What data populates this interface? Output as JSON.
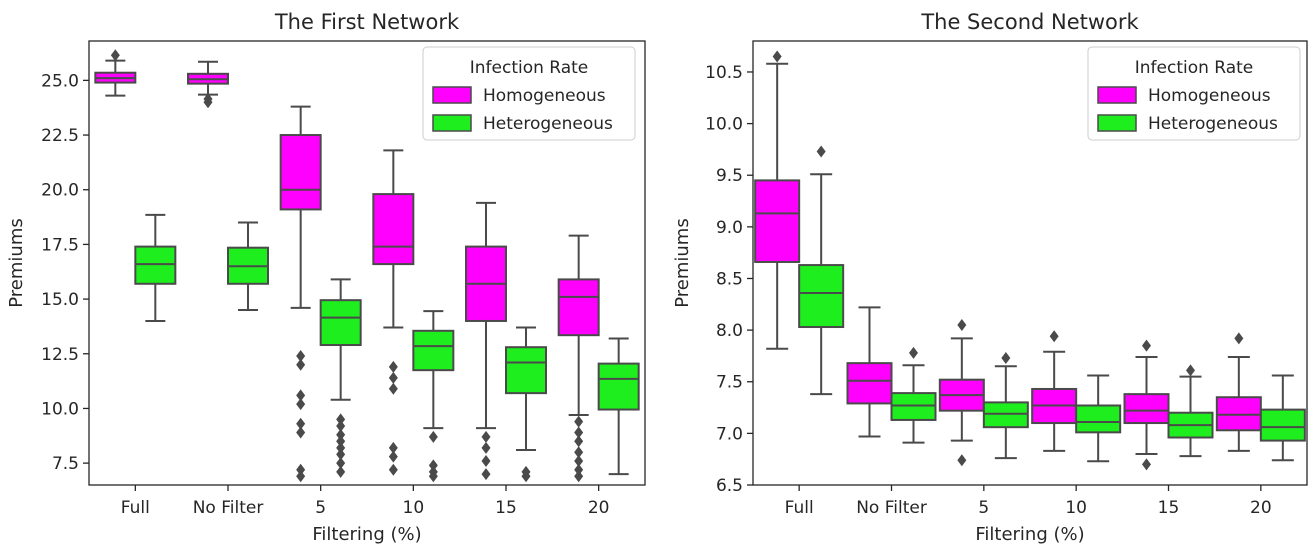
{
  "chart_data": [
    {
      "type": "box",
      "title": "The First Network",
      "xlabel": "Filtering (%)",
      "ylabel": "Premiums",
      "categories": [
        "Full",
        "No Filter",
        "5",
        "10",
        "15",
        "20"
      ],
      "ylim": [
        6.5,
        26.8
      ],
      "yticks": [
        "7.5",
        "10.0",
        "12.5",
        "15.0",
        "17.5",
        "20.0",
        "22.5",
        "25.0"
      ],
      "legend": {
        "title": "Infection Rate",
        "position": "top-right"
      },
      "series": [
        {
          "name": "Homogeneous",
          "color": "#ff00ff",
          "boxes": [
            {
              "whislo": 24.3,
              "q1": 24.9,
              "med": 25.1,
              "q3": 25.35,
              "whishi": 25.9,
              "fliers": [
                26.15
              ]
            },
            {
              "whislo": 24.35,
              "q1": 24.85,
              "med": 25.05,
              "q3": 25.3,
              "whishi": 25.85,
              "fliers": [
                24.15,
                24.0
              ]
            },
            {
              "whislo": 14.6,
              "q1": 19.1,
              "med": 20.0,
              "q3": 22.5,
              "whishi": 23.8,
              "fliers": [
                12.4,
                12.0,
                10.6,
                10.2,
                9.3,
                8.9,
                7.2,
                6.9
              ]
            },
            {
              "whislo": 13.7,
              "q1": 16.6,
              "med": 17.4,
              "q3": 19.8,
              "whishi": 21.8,
              "fliers": [
                11.9,
                11.4,
                10.9,
                8.2,
                7.8,
                7.2
              ]
            },
            {
              "whislo": 9.1,
              "q1": 14.0,
              "med": 15.7,
              "q3": 17.4,
              "whishi": 19.4,
              "fliers": [
                8.7,
                8.2,
                7.6,
                7.0
              ]
            },
            {
              "whislo": 9.7,
              "q1": 13.35,
              "med": 15.1,
              "q3": 15.9,
              "whishi": 17.9,
              "fliers": [
                9.4,
                8.9,
                8.5,
                8.0,
                7.6,
                7.2,
                6.9
              ]
            }
          ]
        },
        {
          "name": "Heterogeneous",
          "color": "#1eee1e",
          "boxes": [
            {
              "whislo": 14.0,
              "q1": 15.7,
              "med": 16.6,
              "q3": 17.4,
              "whishi": 18.85,
              "fliers": []
            },
            {
              "whislo": 14.5,
              "q1": 15.7,
              "med": 16.5,
              "q3": 17.35,
              "whishi": 18.5,
              "fliers": []
            },
            {
              "whislo": 10.4,
              "q1": 12.9,
              "med": 14.15,
              "q3": 14.95,
              "whishi": 15.9,
              "fliers": [
                9.5,
                9.2,
                8.8,
                8.5,
                8.2,
                7.9,
                7.5,
                7.1
              ]
            },
            {
              "whislo": 9.1,
              "q1": 11.75,
              "med": 12.85,
              "q3": 13.55,
              "whishi": 14.45,
              "fliers": [
                8.7,
                7.4,
                7.1,
                6.9
              ]
            },
            {
              "whislo": 8.1,
              "q1": 10.7,
              "med": 12.1,
              "q3": 12.8,
              "whishi": 13.7,
              "fliers": [
                7.1,
                6.9
              ]
            },
            {
              "whislo": 7.0,
              "q1": 9.95,
              "med": 11.35,
              "q3": 12.05,
              "whishi": 13.2,
              "fliers": []
            }
          ]
        }
      ]
    },
    {
      "type": "box",
      "title": "The Second Network",
      "xlabel": "Filtering (%)",
      "ylabel": "Premiums",
      "categories": [
        "Full",
        "No Filter",
        "5",
        "10",
        "15",
        "20"
      ],
      "ylim": [
        6.5,
        10.8
      ],
      "yticks": [
        "6.5",
        "7.0",
        "7.5",
        "8.0",
        "8.5",
        "9.0",
        "9.5",
        "10.0",
        "10.5"
      ],
      "legend": {
        "title": "Infection Rate",
        "position": "top-right"
      },
      "series": [
        {
          "name": "Homogeneous",
          "color": "#ff00ff",
          "boxes": [
            {
              "whislo": 7.82,
              "q1": 8.66,
              "med": 9.13,
              "q3": 9.45,
              "whishi": 10.58,
              "fliers": [
                10.65
              ]
            },
            {
              "whislo": 6.97,
              "q1": 7.29,
              "med": 7.51,
              "q3": 7.68,
              "whishi": 8.22,
              "fliers": []
            },
            {
              "whislo": 6.93,
              "q1": 7.22,
              "med": 7.37,
              "q3": 7.52,
              "whishi": 7.92,
              "fliers": [
                8.05,
                6.74
              ]
            },
            {
              "whislo": 6.83,
              "q1": 7.1,
              "med": 7.27,
              "q3": 7.43,
              "whishi": 7.79,
              "fliers": [
                7.94
              ]
            },
            {
              "whislo": 6.8,
              "q1": 7.1,
              "med": 7.22,
              "q3": 7.38,
              "whishi": 7.74,
              "fliers": [
                7.85,
                6.7
              ]
            },
            {
              "whislo": 6.83,
              "q1": 7.03,
              "med": 7.18,
              "q3": 7.35,
              "whishi": 7.74,
              "fliers": [
                7.92
              ]
            }
          ]
        },
        {
          "name": "Heterogeneous",
          "color": "#1eee1e",
          "boxes": [
            {
              "whislo": 7.38,
              "q1": 8.03,
              "med": 8.36,
              "q3": 8.63,
              "whishi": 9.51,
              "fliers": [
                9.73
              ]
            },
            {
              "whislo": 6.91,
              "q1": 7.13,
              "med": 7.27,
              "q3": 7.39,
              "whishi": 7.66,
              "fliers": [
                7.78
              ]
            },
            {
              "whislo": 6.76,
              "q1": 7.06,
              "med": 7.19,
              "q3": 7.3,
              "whishi": 7.65,
              "fliers": [
                7.73
              ]
            },
            {
              "whislo": 6.73,
              "q1": 7.01,
              "med": 7.11,
              "q3": 7.27,
              "whishi": 7.56,
              "fliers": []
            },
            {
              "whislo": 6.78,
              "q1": 6.96,
              "med": 7.08,
              "q3": 7.2,
              "whishi": 7.55,
              "fliers": [
                7.61
              ]
            },
            {
              "whislo": 6.74,
              "q1": 6.93,
              "med": 7.06,
              "q3": 7.23,
              "whishi": 7.56,
              "fliers": []
            }
          ]
        }
      ]
    }
  ]
}
